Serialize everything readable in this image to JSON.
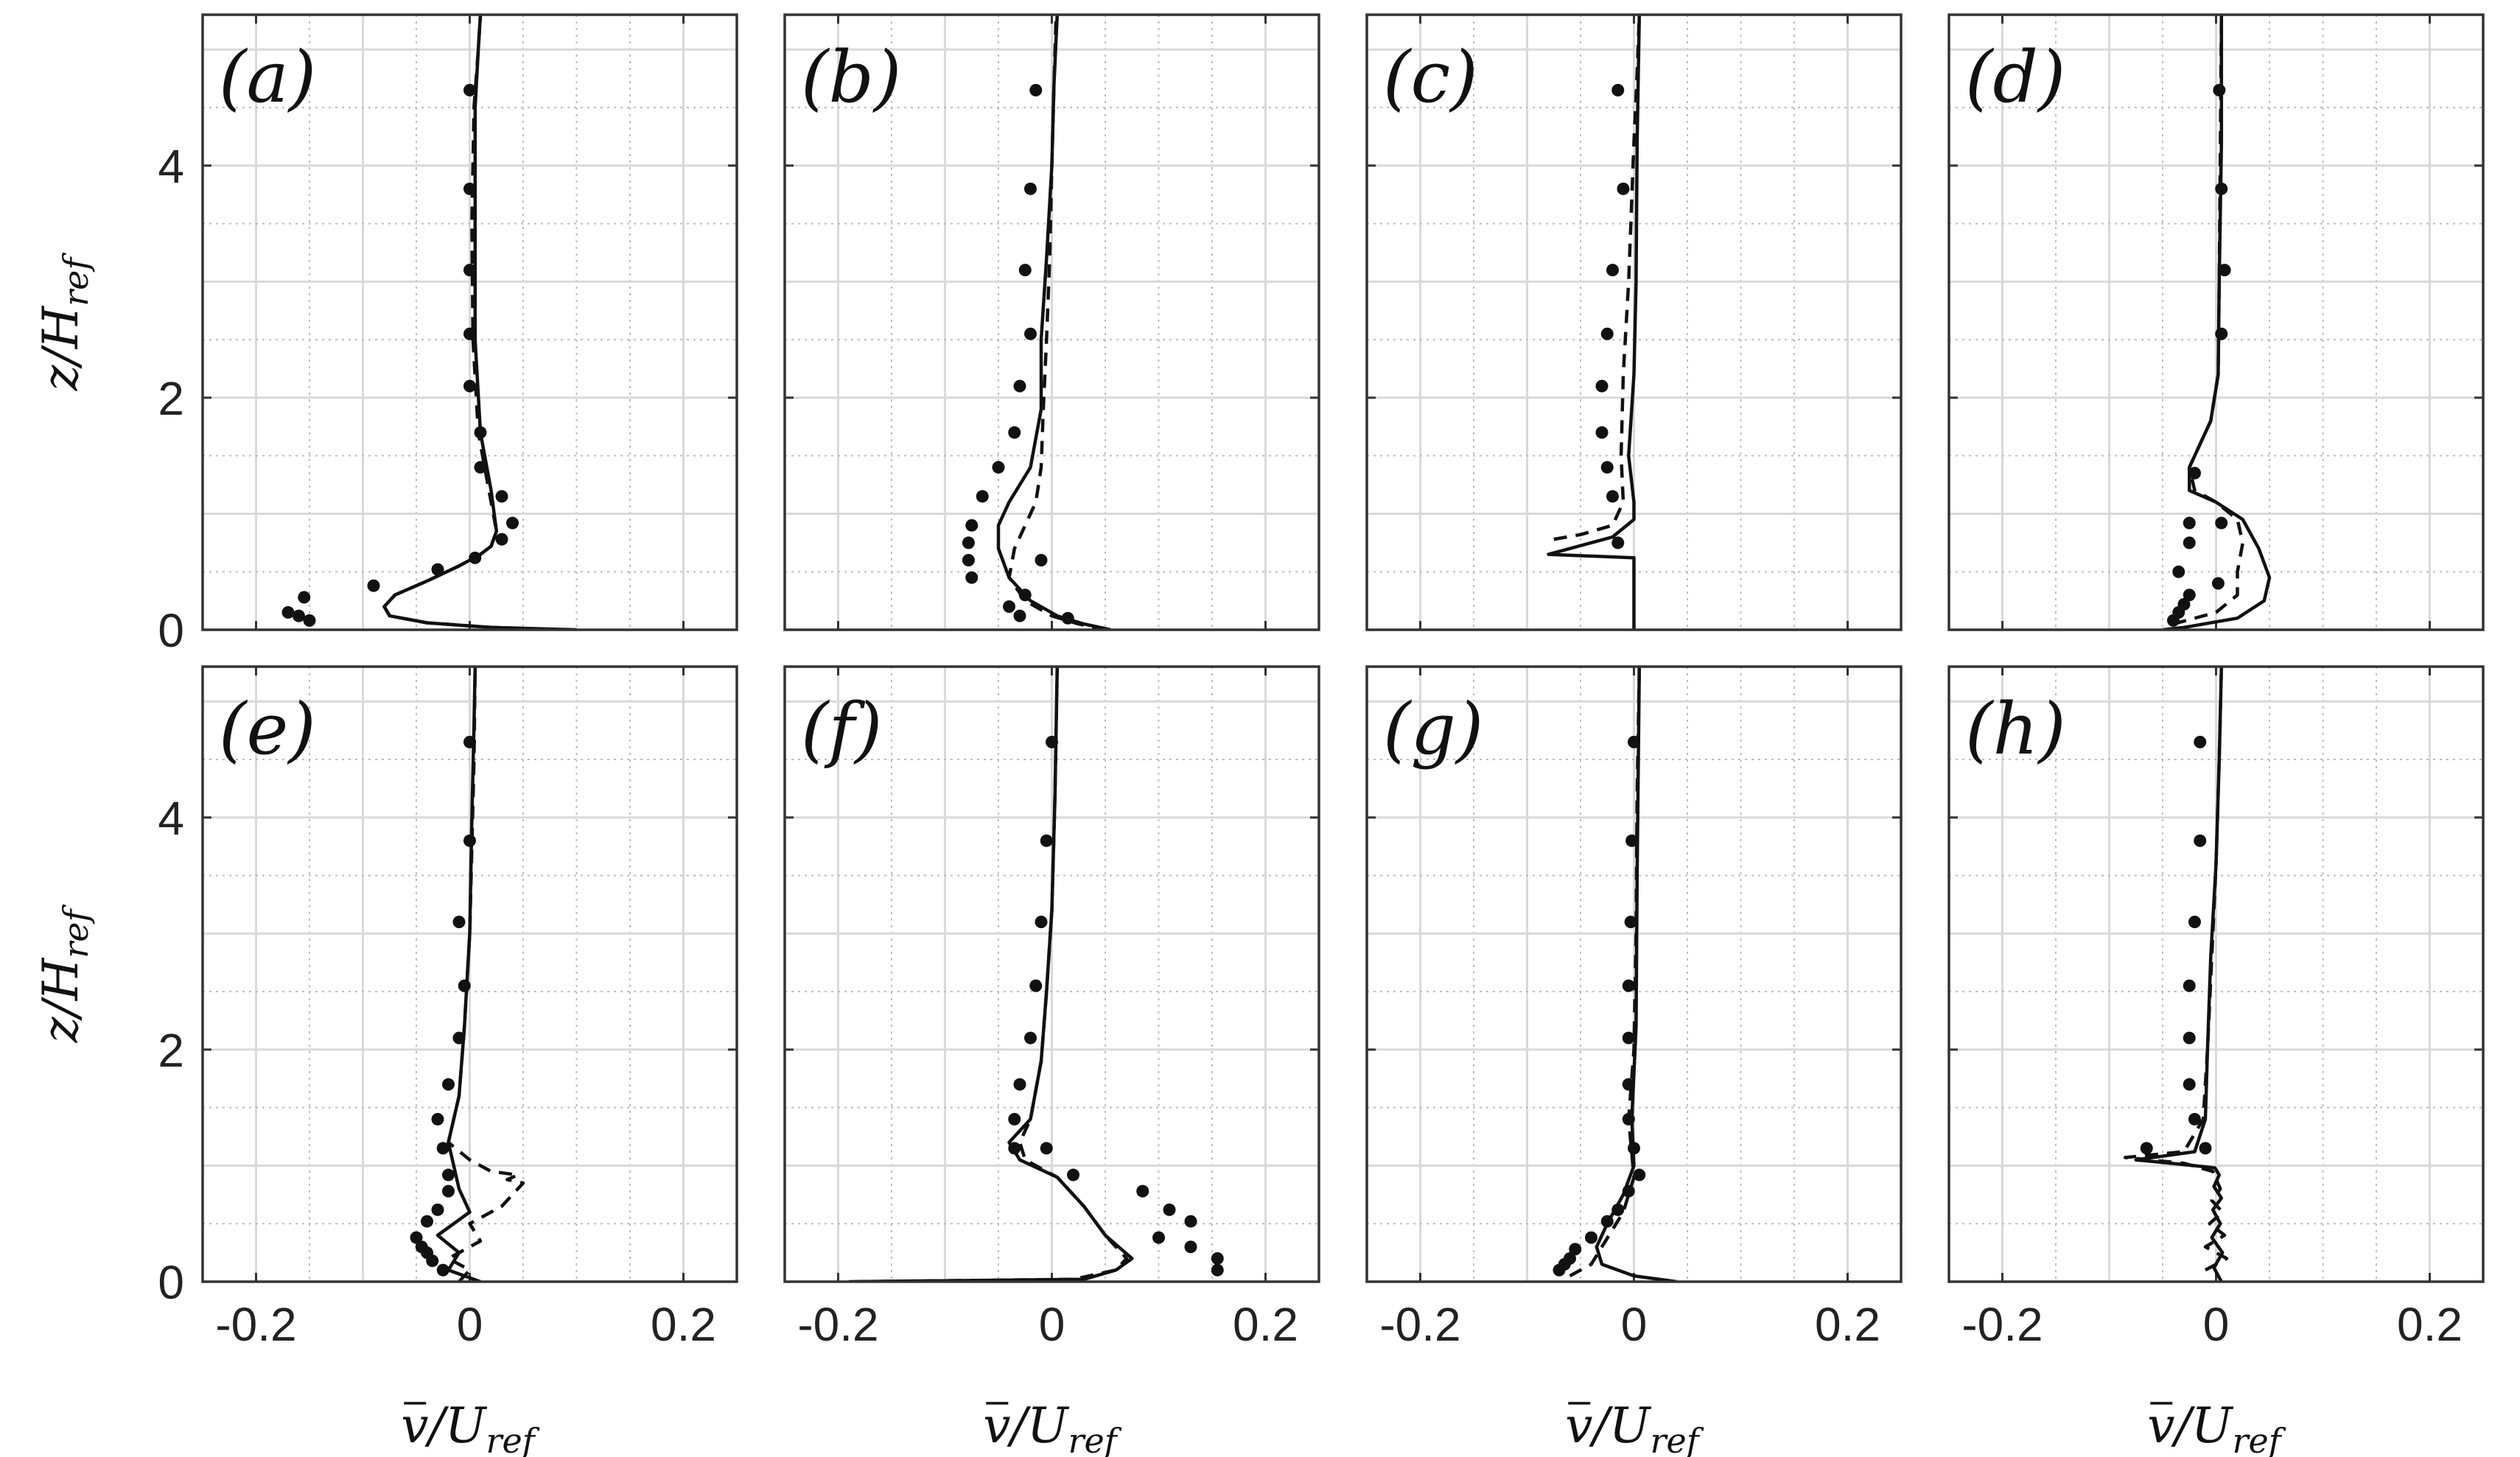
{
  "figure": {
    "ylabel": "z/H_ref",
    "xlabel": "v̄/U_ref",
    "ylabel_parts": {
      "main": "z/H",
      "sub": "ref"
    },
    "xlabel_parts": {
      "main": "v/U",
      "sub": "ref"
    },
    "xticks": [
      "-0.2",
      "0",
      "0.2"
    ],
    "yticks": [
      "0",
      "2",
      "4"
    ],
    "colors": {
      "line": "#111111",
      "grid_major": "#d9d9d9",
      "grid_minor": "#bdbdbd",
      "axes": "#333333"
    }
  },
  "chart_data": [
    {
      "type": "line",
      "label": "(a)",
      "xlim": [
        -0.25,
        0.25
      ],
      "ylim": [
        0,
        5.3
      ],
      "grid": true,
      "series": [
        {
          "style": "solid",
          "x": [
            0.1,
            0.02,
            -0.04,
            -0.075,
            -0.08,
            -0.07,
            -0.04,
            -0.01,
            0.01,
            0.02,
            0.025,
            0.02,
            0.01,
            0.005,
            0.005,
            0.005,
            0.008,
            0.01
          ],
          "y": [
            0.0,
            0.02,
            0.06,
            0.12,
            0.2,
            0.3,
            0.42,
            0.55,
            0.65,
            0.72,
            0.85,
            1.2,
            1.7,
            2.5,
            3.5,
            4.5,
            5.0,
            5.3
          ]
        },
        {
          "style": "dashed",
          "x": [
            0.09,
            0.02,
            -0.04,
            -0.075,
            -0.08,
            -0.07,
            -0.04,
            -0.01,
            0.01,
            0.02,
            0.025,
            0.018,
            0.008,
            0.003,
            0.002,
            0.004,
            0.008,
            0.01
          ],
          "y": [
            0.0,
            0.02,
            0.06,
            0.12,
            0.2,
            0.3,
            0.42,
            0.55,
            0.65,
            0.72,
            0.85,
            1.2,
            1.7,
            2.5,
            3.5,
            4.5,
            5.0,
            5.3
          ]
        },
        {
          "style": "dots",
          "x": [
            -0.15,
            -0.16,
            -0.17,
            -0.155,
            -0.09,
            -0.03,
            0.005,
            0.03,
            0.04,
            0.03,
            0.01,
            0.01,
            0.0,
            0.0,
            0.0,
            0.0,
            0.0
          ],
          "y": [
            0.08,
            0.12,
            0.15,
            0.28,
            0.38,
            0.52,
            0.62,
            0.78,
            0.92,
            1.15,
            1.4,
            1.7,
            2.1,
            2.55,
            3.1,
            3.8,
            4.65
          ]
        }
      ]
    },
    {
      "type": "line",
      "label": "(b)",
      "xlim": [
        -0.25,
        0.25
      ],
      "ylim": [
        0,
        5.3
      ],
      "grid": true,
      "series": [
        {
          "style": "solid",
          "x": [
            0.055,
            0.03,
            0.005,
            -0.02,
            -0.04,
            -0.05,
            -0.05,
            -0.04,
            -0.02,
            -0.01,
            -0.01,
            -0.005,
            0.0,
            0.002,
            0.005
          ],
          "y": [
            0.0,
            0.05,
            0.12,
            0.25,
            0.45,
            0.7,
            0.9,
            1.1,
            1.4,
            1.9,
            2.5,
            3.2,
            4.0,
            4.7,
            5.3
          ]
        },
        {
          "style": "dashed",
          "x": [
            0.05,
            0.025,
            0.0,
            -0.025,
            -0.04,
            -0.035,
            -0.025,
            -0.015,
            -0.01,
            -0.008,
            -0.005,
            -0.002,
            0.0,
            0.002,
            0.004
          ],
          "y": [
            0.0,
            0.05,
            0.12,
            0.25,
            0.45,
            0.7,
            0.9,
            1.1,
            1.4,
            1.9,
            2.5,
            3.2,
            4.0,
            4.7,
            5.3
          ]
        },
        {
          "style": "dots",
          "x": [
            0.015,
            -0.03,
            -0.04,
            -0.025,
            -0.075,
            -0.078,
            -0.078,
            -0.075,
            -0.065,
            -0.05,
            -0.035,
            -0.03,
            -0.02,
            -0.025,
            -0.02,
            -0.015,
            -0.01
          ],
          "y": [
            0.1,
            0.12,
            0.2,
            0.3,
            0.45,
            0.6,
            0.75,
            0.9,
            1.15,
            1.4,
            1.7,
            2.1,
            2.55,
            3.1,
            3.8,
            4.65,
            0.6
          ]
        }
      ]
    },
    {
      "type": "line",
      "label": "(c)",
      "xlim": [
        -0.25,
        0.25
      ],
      "ylim": [
        0,
        5.3
      ],
      "grid": true,
      "series": [
        {
          "style": "solid",
          "x": [
            0.0,
            0.0,
            -0.08,
            -0.02,
            0.0,
            0.0,
            -0.005,
            0.0,
            0.002,
            0.003,
            0.005
          ],
          "y": [
            0.0,
            0.62,
            0.65,
            0.8,
            0.95,
            1.1,
            1.5,
            2.2,
            3.0,
            4.2,
            5.3
          ]
        },
        {
          "style": "dashed",
          "x": [
            -0.075,
            -0.05,
            -0.02,
            -0.01,
            -0.012,
            -0.01,
            -0.005,
            0.0,
            0.003,
            0.005
          ],
          "y": [
            0.78,
            0.82,
            0.9,
            1.1,
            1.5,
            2.2,
            3.0,
            4.2,
            4.8,
            5.3
          ]
        },
        {
          "style": "dots",
          "x": [
            -0.015,
            -0.02,
            -0.025,
            -0.03,
            -0.03,
            -0.025,
            -0.02,
            -0.01,
            -0.015
          ],
          "y": [
            0.75,
            1.15,
            1.4,
            1.7,
            2.1,
            2.55,
            3.1,
            3.8,
            4.65
          ]
        }
      ]
    },
    {
      "type": "line",
      "label": "(d)",
      "xlim": [
        -0.25,
        0.25
      ],
      "ylim": [
        0,
        5.3
      ],
      "grid": true,
      "series": [
        {
          "style": "solid",
          "x": [
            -0.05,
            -0.03,
            0.02,
            0.045,
            0.05,
            0.04,
            0.025,
            0.0,
            -0.025,
            -0.025,
            -0.005,
            0.002,
            0.003,
            0.005,
            0.005
          ],
          "y": [
            0.0,
            0.02,
            0.1,
            0.25,
            0.45,
            0.7,
            0.95,
            1.1,
            1.2,
            1.4,
            1.8,
            2.2,
            3.0,
            4.2,
            5.3
          ]
        },
        {
          "style": "dashed",
          "x": [
            -0.04,
            0.0,
            0.02,
            0.02,
            0.025,
            0.02,
            0.0,
            -0.02,
            -0.025,
            -0.005,
            0.002,
            0.003,
            0.005
          ],
          "y": [
            0.05,
            0.15,
            0.3,
            0.5,
            0.75,
            0.95,
            1.1,
            1.2,
            1.4,
            1.8,
            2.2,
            3.0,
            5.3
          ]
        },
        {
          "style": "dots",
          "x": [
            -0.04,
            -0.035,
            -0.03,
            -0.025,
            -0.035,
            -0.025,
            -0.025,
            0.005,
            -0.02,
            0.005,
            0.008,
            0.005,
            0.003,
            0.002
          ],
          "y": [
            0.08,
            0.15,
            0.22,
            0.3,
            0.5,
            0.75,
            0.92,
            0.92,
            1.35,
            2.55,
            3.1,
            3.8,
            4.65,
            0.4
          ]
        }
      ]
    },
    {
      "type": "line",
      "label": "(e)",
      "xlim": [
        -0.25,
        0.25
      ],
      "ylim": [
        0,
        5.3
      ],
      "grid": true,
      "series": [
        {
          "style": "solid",
          "x": [
            0.01,
            -0.02,
            -0.01,
            -0.03,
            0.0,
            -0.01,
            -0.015,
            -0.02,
            -0.01,
            -0.005,
            0.0,
            0.002,
            0.004,
            0.005
          ],
          "y": [
            0.0,
            0.1,
            0.25,
            0.4,
            0.6,
            0.8,
            1.0,
            1.2,
            1.6,
            2.2,
            3.0,
            4.0,
            4.8,
            5.3
          ]
        },
        {
          "style": "dashed",
          "x": [
            -0.01,
            0.0,
            -0.02,
            0.01,
            0.0,
            0.03,
            0.05,
            0.035,
            0.045,
            0.02,
            0.0,
            -0.02,
            -0.01,
            -0.005,
            0.0,
            0.004,
            0.005
          ],
          "y": [
            0.0,
            0.1,
            0.2,
            0.35,
            0.5,
            0.65,
            0.85,
            0.88,
            0.92,
            0.95,
            1.05,
            1.2,
            1.6,
            2.2,
            3.0,
            4.5,
            5.3
          ]
        },
        {
          "style": "dots",
          "x": [
            -0.025,
            -0.035,
            -0.04,
            -0.045,
            -0.05,
            -0.04,
            -0.03,
            -0.02,
            -0.02,
            -0.025,
            -0.03,
            -0.02,
            -0.01,
            -0.005,
            -0.01,
            0.0,
            0.0
          ],
          "y": [
            0.1,
            0.18,
            0.25,
            0.3,
            0.38,
            0.52,
            0.62,
            0.78,
            0.92,
            1.15,
            1.4,
            1.7,
            2.1,
            2.55,
            3.1,
            3.8,
            4.65
          ]
        }
      ]
    },
    {
      "type": "line",
      "label": "(f)",
      "xlim": [
        -0.25,
        0.25
      ],
      "ylim": [
        0,
        5.3
      ],
      "grid": true,
      "series": [
        {
          "style": "solid",
          "x": [
            -0.19,
            0.03,
            0.06,
            0.075,
            0.05,
            0.03,
            0.005,
            -0.03,
            -0.04,
            -0.02,
            -0.01,
            -0.005,
            0.0,
            0.003,
            0.005
          ],
          "y": [
            0.0,
            0.02,
            0.1,
            0.2,
            0.4,
            0.65,
            0.9,
            1.05,
            1.2,
            1.4,
            1.9,
            2.5,
            3.2,
            4.2,
            5.3
          ]
        },
        {
          "style": "dashed",
          "x": [
            -0.18,
            0.02,
            0.06,
            0.07,
            0.05,
            0.03,
            0.005,
            -0.025,
            -0.03,
            -0.02,
            -0.01,
            -0.005,
            0.0,
            0.003,
            0.005
          ],
          "y": [
            0.0,
            0.02,
            0.1,
            0.2,
            0.4,
            0.65,
            0.9,
            1.05,
            1.2,
            1.4,
            1.9,
            2.5,
            3.2,
            4.2,
            5.3
          ]
        },
        {
          "style": "dots",
          "x": [
            0.155,
            0.155,
            0.13,
            0.1,
            0.13,
            0.11,
            0.085,
            0.02,
            -0.035,
            -0.035,
            -0.03,
            -0.02,
            -0.015,
            -0.01,
            -0.005,
            0.0,
            -0.005
          ],
          "y": [
            0.1,
            0.2,
            0.3,
            0.38,
            0.52,
            0.62,
            0.78,
            0.92,
            1.15,
            1.4,
            1.7,
            2.1,
            2.55,
            3.1,
            3.8,
            4.65,
            1.15
          ]
        }
      ]
    },
    {
      "type": "line",
      "label": "(g)",
      "xlim": [
        -0.25,
        0.25
      ],
      "ylim": [
        0,
        5.3
      ],
      "grid": true,
      "series": [
        {
          "style": "solid",
          "x": [
            0.04,
            0.0,
            -0.03,
            -0.035,
            -0.025,
            -0.01,
            0.0,
            -0.002,
            0.002,
            0.003,
            0.005
          ],
          "y": [
            0.0,
            0.05,
            0.15,
            0.3,
            0.5,
            0.75,
            1.0,
            1.4,
            2.2,
            3.5,
            5.3
          ]
        },
        {
          "style": "dashed",
          "x": [
            -0.06,
            -0.04,
            -0.03,
            -0.02,
            -0.01,
            0.0,
            -0.005,
            0.0,
            0.002,
            0.003,
            0.005
          ],
          "y": [
            0.05,
            0.15,
            0.3,
            0.45,
            0.6,
            0.9,
            1.4,
            2.0,
            3.0,
            4.2,
            5.3
          ]
        },
        {
          "style": "dots",
          "x": [
            -0.07,
            -0.065,
            -0.06,
            -0.055,
            -0.04,
            -0.025,
            -0.015,
            -0.005,
            0.005,
            0.0,
            -0.005,
            -0.005,
            -0.005,
            -0.005,
            -0.003,
            -0.002,
            0.0
          ],
          "y": [
            0.1,
            0.15,
            0.2,
            0.28,
            0.38,
            0.52,
            0.62,
            0.78,
            0.92,
            1.15,
            1.4,
            1.7,
            2.1,
            2.55,
            3.1,
            3.8,
            4.65
          ]
        }
      ]
    },
    {
      "type": "line",
      "label": "(h)",
      "xlim": [
        -0.25,
        0.25
      ],
      "ylim": [
        0,
        5.3
      ],
      "grid": true,
      "series": [
        {
          "style": "solid",
          "x": [
            0.005,
            -0.002,
            0.006,
            -0.004,
            0.004,
            -0.003,
            0.005,
            -0.002,
            0.003,
            -0.001,
            -0.02,
            -0.075,
            -0.02,
            -0.01,
            -0.008,
            -0.005,
            0.0,
            0.003,
            0.005
          ],
          "y": [
            0.0,
            0.12,
            0.25,
            0.38,
            0.5,
            0.62,
            0.72,
            0.82,
            0.92,
            0.98,
            1.0,
            1.05,
            1.12,
            1.4,
            2.0,
            2.8,
            3.6,
            4.5,
            5.3
          ]
        },
        {
          "style": "dashed",
          "x": [
            -0.01,
            0.01,
            -0.01,
            0.008,
            -0.006,
            0.006,
            -0.004,
            0.004,
            -0.003,
            -0.03,
            -0.085,
            -0.03,
            -0.012,
            -0.008,
            -0.004,
            0.0,
            0.003,
            0.005
          ],
          "y": [
            0.1,
            0.2,
            0.3,
            0.4,
            0.5,
            0.6,
            0.7,
            0.8,
            0.95,
            1.02,
            1.07,
            1.12,
            1.4,
            2.0,
            2.8,
            3.6,
            4.5,
            5.3
          ]
        },
        {
          "style": "dots",
          "x": [
            -0.065,
            -0.02,
            -0.025,
            -0.025,
            -0.025,
            -0.02,
            -0.015,
            -0.015,
            -0.01
          ],
          "y": [
            1.15,
            1.4,
            1.7,
            2.1,
            2.55,
            3.1,
            3.8,
            4.65,
            1.15
          ]
        }
      ]
    }
  ]
}
